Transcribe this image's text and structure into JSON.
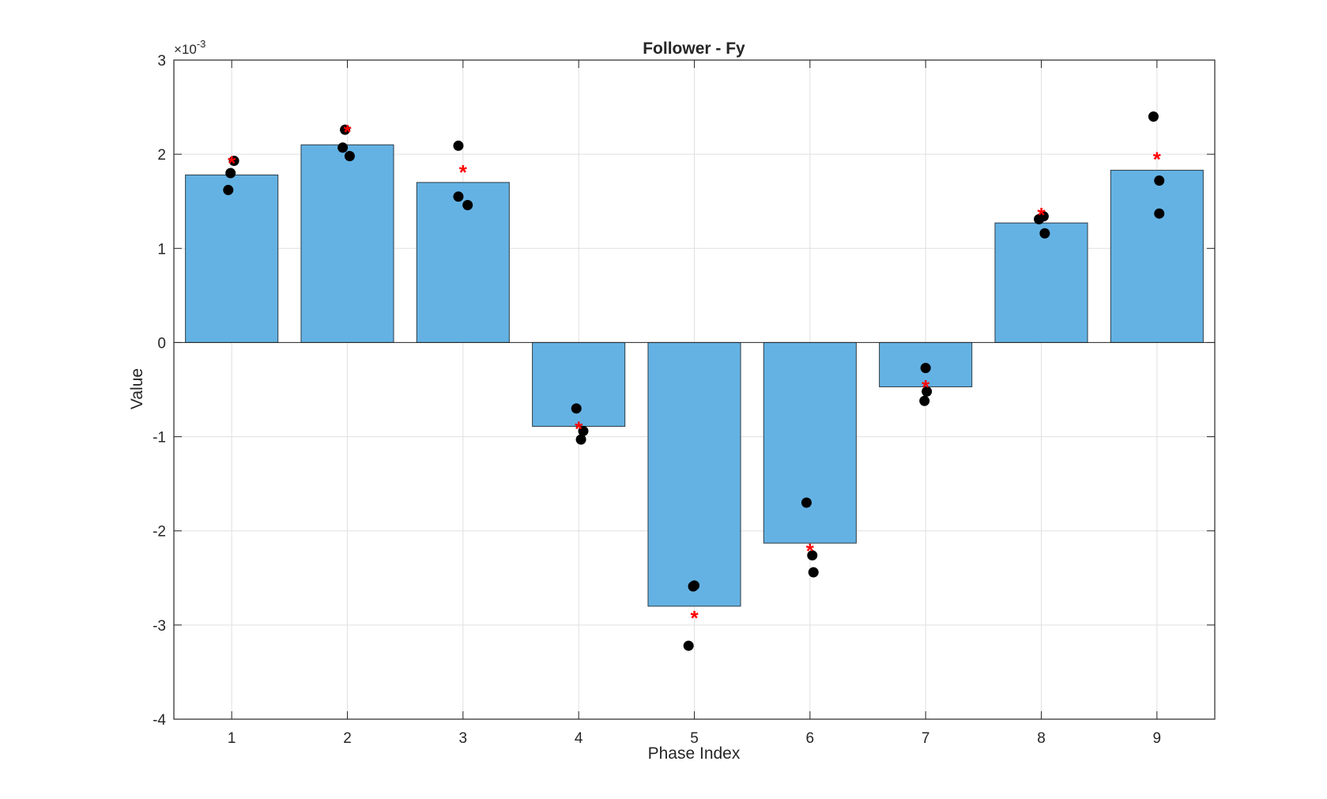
{
  "chart_data": {
    "type": "bar",
    "title": "Follower - Fy",
    "xlabel": "Phase Index",
    "ylabel": "Value",
    "y_exponent_base": "×10",
    "y_exponent_power": "-3",
    "categories": [
      "1",
      "2",
      "3",
      "4",
      "5",
      "6",
      "7",
      "8",
      "9"
    ],
    "values": [
      1.78,
      2.1,
      1.7,
      -0.89,
      -2.8,
      -2.13,
      -0.47,
      1.27,
      1.83
    ],
    "mean_markers": [
      1.94,
      2.27,
      1.84,
      -0.88,
      -2.89,
      -2.18,
      -0.44,
      1.39,
      1.98
    ],
    "points": [
      {
        "x": 0.97,
        "y": 1.62
      },
      {
        "x": 0.99,
        "y": 1.8
      },
      {
        "x": 1.02,
        "y": 1.93
      },
      {
        "x": 1.96,
        "y": 2.07
      },
      {
        "x": 1.98,
        "y": 2.26
      },
      {
        "x": 2.02,
        "y": 1.98
      },
      {
        "x": 2.96,
        "y": 2.09
      },
      {
        "x": 2.96,
        "y": 1.55
      },
      {
        "x": 3.04,
        "y": 1.46
      },
      {
        "x": 3.98,
        "y": -0.7
      },
      {
        "x": 4.02,
        "y": -1.03
      },
      {
        "x": 4.04,
        "y": -0.94
      },
      {
        "x": 4.95,
        "y": -3.22
      },
      {
        "x": 4.99,
        "y": -2.59
      },
      {
        "x": 5.0,
        "y": -2.58
      },
      {
        "x": 5.97,
        "y": -1.7
      },
      {
        "x": 6.02,
        "y": -2.26
      },
      {
        "x": 6.03,
        "y": -2.44
      },
      {
        "x": 7.0,
        "y": -0.27
      },
      {
        "x": 6.99,
        "y": -0.62
      },
      {
        "x": 7.01,
        "y": -0.52
      },
      {
        "x": 7.98,
        "y": 1.31
      },
      {
        "x": 8.02,
        "y": 1.34
      },
      {
        "x": 8.03,
        "y": 1.16
      },
      {
        "x": 8.97,
        "y": 2.4
      },
      {
        "x": 9.02,
        "y": 1.72
      },
      {
        "x": 9.02,
        "y": 1.37
      }
    ],
    "ylim": [
      -4,
      3
    ],
    "yticks": [
      -4,
      -3,
      -2,
      -1,
      0,
      1,
      2,
      3
    ],
    "xlim": [
      0.5,
      9.5
    ],
    "grid": true,
    "colors": {
      "bar": "#64b2e4",
      "bar_edge": "#2b3a44",
      "points": "#000000",
      "mean_marker": "#ff0000",
      "grid": "#e0e0e0",
      "axis": "#262626"
    }
  }
}
